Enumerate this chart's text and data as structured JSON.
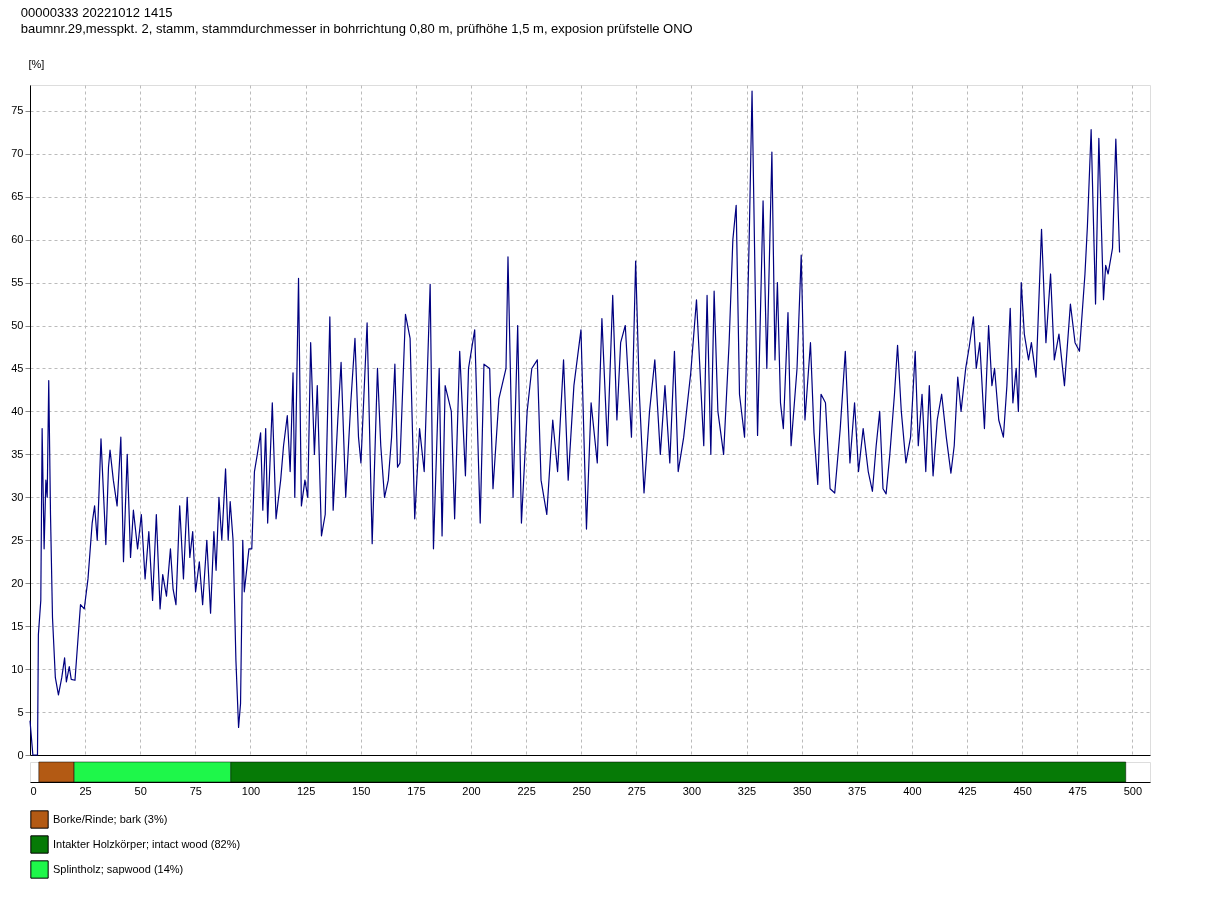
{
  "chart_data": [
    {
      "type": "line",
      "tick_labels": "y",
      "title": "00000333   20221012   1415",
      "subtitle": "baumnr.29,messpkt. 2, stamm, stammdurchmesser in bohrrichtung 0,80 m, prüfhöhe 1,5 m, exposion prüfstelle ONO",
      "ylabel": "[%]",
      "xlim": [
        0,
        508
      ],
      "xticks": [
        0,
        25,
        50,
        75,
        100,
        125,
        150,
        175,
        200,
        225,
        250,
        275,
        300,
        325,
        350,
        375,
        400,
        425,
        450,
        475,
        500
      ],
      "ylim": [
        0,
        78
      ],
      "yticks": [
        0,
        5,
        10,
        15,
        20,
        25,
        30,
        35,
        40,
        45,
        50,
        55,
        60,
        65,
        70,
        75
      ],
      "grid": true,
      "marker": "none",
      "line_style": "solid",
      "series": [
        {
          "color": "#000080",
          "x": [
            0,
            1.3,
            3.4,
            3.8,
            4.9,
            5.5,
            6.4,
            7.2,
            7.8,
            8.5,
            9.3,
            10.2,
            11.5,
            12.9,
            14.4,
            15.7,
            16.5,
            17.8,
            18.7,
            20.4,
            22.9,
            24.6,
            26.3,
            28.2,
            29.3,
            30.5,
            32.2,
            34.4,
            35.6,
            36.3,
            37.8,
            39.5,
            41.2,
            42.4,
            44.1,
            45.6,
            46.9,
            48.8,
            50.5,
            52.2,
            53.9,
            55.6,
            57.3,
            59,
            60.2,
            61.9,
            63.7,
            64.9,
            66.2,
            67.9,
            69.6,
            71.3,
            72.5,
            73.8,
            75.1,
            76.8,
            78.3,
            80.2,
            81.9,
            83.4,
            84.4,
            85.7,
            87,
            88.7,
            89.9,
            90.8,
            92.1,
            93.4,
            94.6,
            95.5,
            96.5,
            97.2,
            99.3,
            100.6,
            101.8,
            103.1,
            104.6,
            105.6,
            106.9,
            107.8,
            109.9,
            111.6,
            113.7,
            115,
            116.7,
            118,
            119.3,
            120.1,
            121.8,
            123.1,
            124.7,
            126,
            127.3,
            129,
            130.3,
            132.2,
            133.9,
            136,
            137.5,
            139.6,
            141.1,
            143.2,
            145.5,
            147.4,
            149,
            150.1,
            152.9,
            155.2,
            157.6,
            159.1,
            160.8,
            162.5,
            164,
            165.5,
            166.7,
            167.8,
            170.3,
            172.4,
            174.5,
            176.7,
            178.8,
            181.5,
            183,
            185.6,
            186.9,
            188.3,
            191.1,
            192.6,
            194.9,
            197.5,
            198.9,
            201.7,
            204.2,
            205.9,
            208.5,
            210,
            212.7,
            215.9,
            216.8,
            219.1,
            221.2,
            222.9,
            225.5,
            227.6,
            230.1,
            231.8,
            234.4,
            237.1,
            239.3,
            242,
            244.1,
            246.7,
            249.9,
            252.4,
            254.5,
            257.3,
            259.4,
            261.9,
            264.3,
            266.2,
            267.9,
            270,
            272.8,
            274.7,
            276.4,
            278.5,
            281,
            283.4,
            285.9,
            288,
            290.2,
            292.3,
            294,
            296.5,
            299.7,
            302.3,
            305.6,
            307.1,
            308.8,
            310.3,
            312,
            314.6,
            317.1,
            318.8,
            320.3,
            321.8,
            324.1,
            326.2,
            327.5,
            330,
            332.5,
            334.2,
            336.5,
            337.9,
            339,
            340.4,
            341.7,
            343.8,
            345.2,
            347.9,
            349.8,
            351.5,
            354,
            355.6,
            357.3,
            358.8,
            360.8,
            362.9,
            365,
            367.5,
            369.8,
            371.9,
            374,
            375.8,
            377.9,
            380.2,
            382.1,
            383.8,
            385.4,
            386.9,
            388.3,
            390,
            392.1,
            393.5,
            395.2,
            397.3,
            399.4,
            401.5,
            402.9,
            404.6,
            406.3,
            407.9,
            409.6,
            411.5,
            413.5,
            415.6,
            417.7,
            419.2,
            420.8,
            422.3,
            424.4,
            426,
            427.9,
            429.2,
            430.8,
            432.9,
            434.8,
            436.3,
            437.5,
            439.4,
            441.5,
            443.1,
            444.6,
            445.8,
            447.3,
            448.3,
            449.6,
            451,
            452.9,
            454.2,
            456.3,
            458.8,
            460.8,
            462.9,
            464.6,
            466.7,
            469.2,
            471.9,
            474,
            476,
            478.5,
            479.6,
            481.3,
            483.3,
            484.8,
            486.9,
            487.9,
            489,
            491,
            492.5,
            494.2
          ],
          "values": [
            4,
            0,
            0,
            14,
            18,
            38,
            24,
            32,
            30,
            43.6,
            28,
            16,
            9,
            7,
            9,
            11.3,
            8.5,
            10.3,
            8.8,
            8.7,
            17.5,
            17,
            20.5,
            27,
            29,
            25,
            36.8,
            24.5,
            33.5,
            35.5,
            32,
            29,
            37,
            22.5,
            35,
            23,
            28.5,
            24,
            28,
            20.5,
            26,
            18,
            28,
            17,
            21,
            18.5,
            24,
            19.3,
            17.5,
            29,
            20.5,
            30,
            23,
            26,
            19,
            22.5,
            17.5,
            25,
            16.5,
            26,
            21.5,
            30,
            25,
            33.3,
            25,
            29.5,
            25,
            11,
            3.2,
            6,
            25,
            19,
            24,
            24,
            33,
            35,
            37.5,
            28.5,
            38,
            27,
            41,
            27.5,
            32,
            36,
            39.5,
            33,
            44.5,
            30,
            55.5,
            29,
            32,
            30,
            48,
            35,
            43,
            25.5,
            28,
            51,
            28.5,
            39,
            45.7,
            30,
            41,
            48.5,
            37,
            34,
            50.3,
            24.6,
            45,
            36,
            30,
            32,
            37,
            45.5,
            33.5,
            34,
            51.3,
            48.5,
            27.5,
            38,
            33,
            54.8,
            24,
            45,
            25.5,
            43,
            40,
            27.5,
            47,
            32.5,
            45,
            49.5,
            27,
            45.5,
            45,
            31,
            41.5,
            45,
            58,
            30,
            50,
            27,
            40,
            45,
            46,
            32,
            28,
            39,
            33,
            46,
            32,
            43,
            49.5,
            26.3,
            41,
            34,
            50.8,
            36,
            53.5,
            39,
            48,
            50,
            37,
            57.5,
            42,
            30.5,
            40,
            46,
            35,
            43,
            34,
            47,
            33,
            37,
            44.5,
            53,
            36,
            53.5,
            35,
            54,
            40,
            35,
            48,
            60,
            64,
            42,
            37,
            60,
            77.3,
            37.2,
            64.5,
            45,
            70.2,
            46,
            55,
            41,
            38,
            51.5,
            36,
            45,
            58.2,
            39,
            48,
            37.5,
            31.5,
            42,
            41,
            31,
            30.5,
            38,
            47,
            34,
            41,
            33,
            38,
            33,
            30.7,
            36,
            40,
            31,
            30.4,
            35,
            42,
            47.7,
            40,
            34,
            37,
            47,
            36,
            42,
            33,
            43,
            32.5,
            39,
            42,
            37,
            32.8,
            36,
            44,
            40,
            45,
            47.5,
            51,
            45,
            48,
            38,
            50,
            43,
            45,
            39,
            37,
            43,
            52,
            41,
            45,
            40,
            55,
            49,
            46,
            48,
            44,
            61.2,
            48,
            56,
            46,
            49,
            43,
            52.5,
            48,
            47,
            56,
            61.5,
            72.8,
            52.5,
            71.8,
            53,
            57,
            56,
            59,
            71.7,
            58.5
          ]
        }
      ]
    },
    {
      "type": "bar",
      "orientation": "horizontal",
      "tick_labels": "x",
      "categories": [
        null
      ],
      "legend": "bottom left",
      "xlim": [
        0,
        508
      ],
      "xticks": [
        0,
        25,
        50,
        75,
        100,
        125,
        150,
        175,
        200,
        225,
        250,
        275,
        300,
        325,
        350,
        375,
        400,
        425,
        450,
        475,
        500
      ],
      "series": [
        {
          "name": "Borke/Rinde; bark (3%)",
          "color": "#b35a14",
          "base": [
            4
          ],
          "values": [
            16
          ]
        },
        {
          "name": "Intakter Holzkörper; intact wood (82%)",
          "color": "#067a06",
          "base": [
            91
          ],
          "values": [
            406
          ]
        },
        {
          "name": "Splintholz; sapwood (14%)",
          "color": "#1ef74a",
          "base": [
            20
          ],
          "values": [
            71
          ]
        }
      ]
    }
  ]
}
